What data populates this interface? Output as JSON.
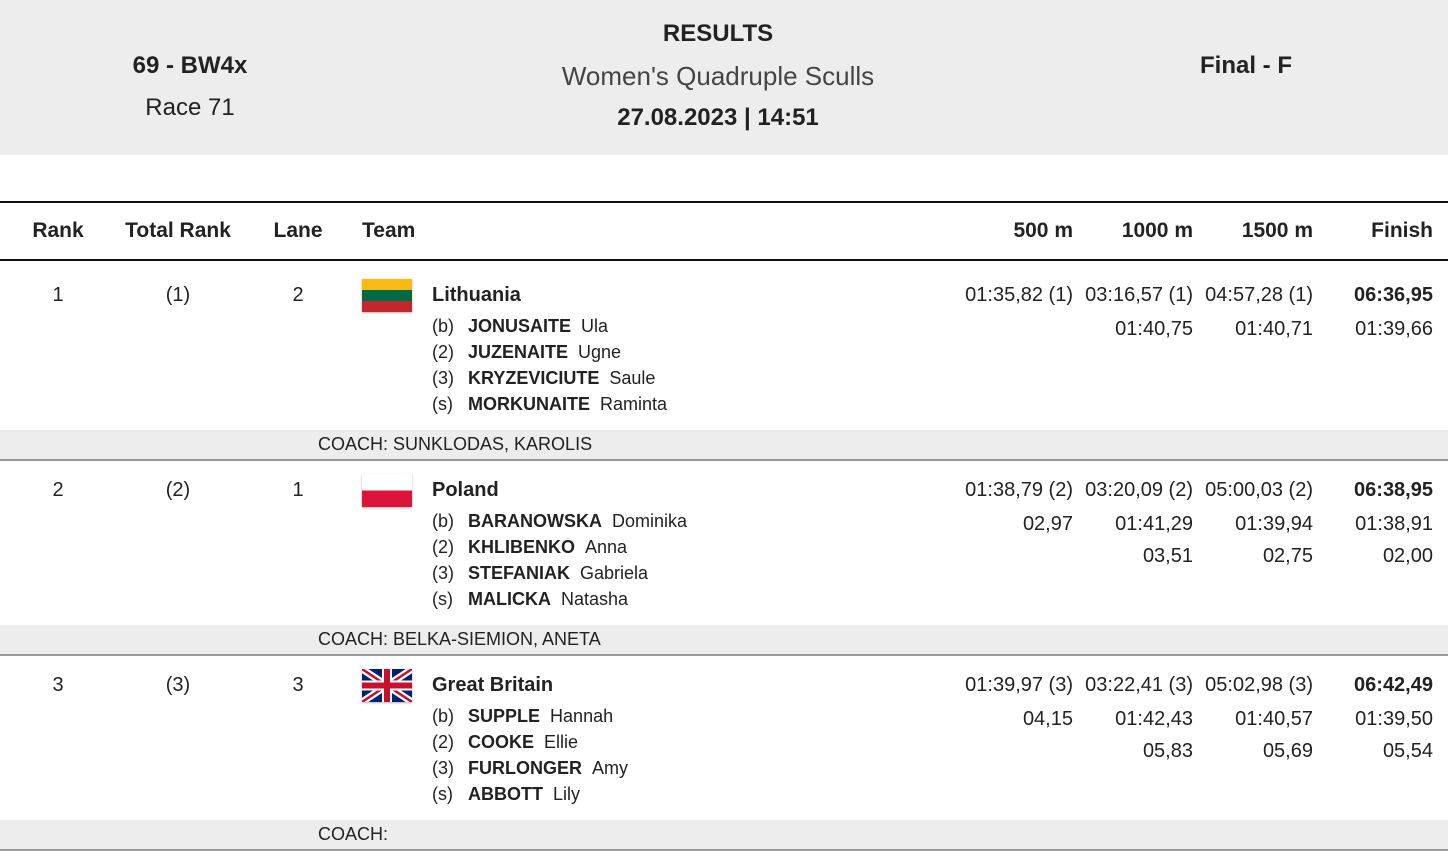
{
  "header": {
    "event": "69 - BW4x",
    "race": "Race 71",
    "title": "RESULTS",
    "subtitle": "Women's Quadruple Sculls",
    "datetime": "27.08.2023 | 14:51",
    "phase": "Final - F"
  },
  "table": {
    "columns": [
      "Rank",
      "Total Rank",
      "Lane",
      "Team",
      "500 m",
      "1000 m",
      "1500 m",
      "Finish"
    ],
    "rows": [
      {
        "rank": "1",
        "total_rank": "(1)",
        "lane": "2",
        "team": "Lithuania",
        "crew": [
          {
            "seat": "(b)",
            "surname": "JONUSAITE",
            "given": "Ula"
          },
          {
            "seat": "(2)",
            "surname": "JUZENAITE",
            "given": "Ugne"
          },
          {
            "seat": "(3)",
            "surname": "KRYZEVICIUTE",
            "given": "Saule"
          },
          {
            "seat": "(s)",
            "surname": "MORKUNAITE",
            "given": "Raminta"
          }
        ],
        "splits": [
          {
            "time": "01:35,82 (1)"
          },
          {
            "time": "03:16,57 (1)",
            "split": "01:40,75"
          },
          {
            "time": "04:57,28 (1)",
            "split": "01:40,71"
          },
          {
            "time": "06:36,95",
            "split": "01:39,66"
          }
        ],
        "coach": "COACH: SUNKLODAS, KAROLIS"
      },
      {
        "rank": "2",
        "total_rank": "(2)",
        "lane": "1",
        "team": "Poland",
        "crew": [
          {
            "seat": "(b)",
            "surname": "BARANOWSKA",
            "given": "Dominika"
          },
          {
            "seat": "(2)",
            "surname": "KHLIBENKO",
            "given": "Anna"
          },
          {
            "seat": "(3)",
            "surname": "STEFANIAK",
            "given": "Gabriela"
          },
          {
            "seat": "(s)",
            "surname": "MALICKA",
            "given": "Natasha"
          }
        ],
        "splits": [
          {
            "time": "01:38,79 (2)",
            "split": "02,97"
          },
          {
            "time": "03:20,09 (2)",
            "split": "01:41,29",
            "gap": "03,51"
          },
          {
            "time": "05:00,03 (2)",
            "split": "01:39,94",
            "gap": "02,75"
          },
          {
            "time": "06:38,95",
            "split": "01:38,91",
            "gap": "02,00"
          }
        ],
        "coach": "COACH: BELKA-SIEMION, ANETA"
      },
      {
        "rank": "3",
        "total_rank": "(3)",
        "lane": "3",
        "team": "Great Britain",
        "crew": [
          {
            "seat": "(b)",
            "surname": "SUPPLE",
            "given": "Hannah"
          },
          {
            "seat": "(2)",
            "surname": "COOKE",
            "given": "Ellie"
          },
          {
            "seat": "(3)",
            "surname": "FURLONGER",
            "given": "Amy"
          },
          {
            "seat": "(s)",
            "surname": "ABBOTT",
            "given": "Lily"
          }
        ],
        "splits": [
          {
            "time": "01:39,97 (3)",
            "split": "04,15"
          },
          {
            "time": "03:22,41 (3)",
            "split": "01:42,43",
            "gap": "05,83"
          },
          {
            "time": "05:02,98 (3)",
            "split": "01:40,57",
            "gap": "05,69"
          },
          {
            "time": "06:42,49",
            "split": "01:39,50",
            "gap": "05,54"
          }
        ],
        "coach": "COACH:"
      }
    ]
  }
}
